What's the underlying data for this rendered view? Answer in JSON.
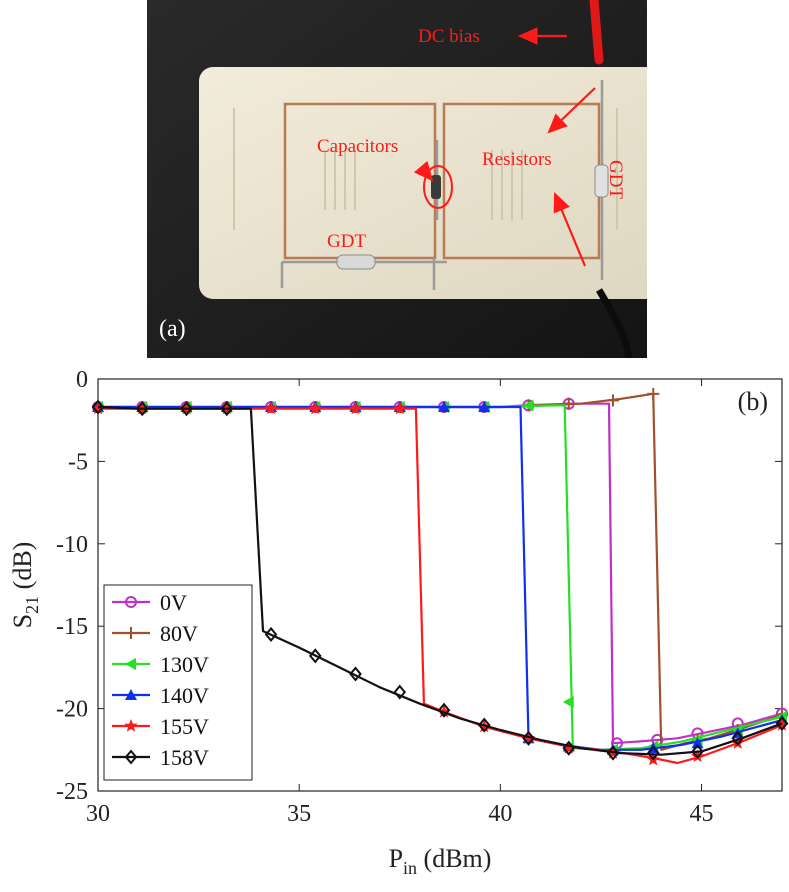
{
  "photo": {
    "panel_label": "(a)",
    "annotations": {
      "dc_bias": "DC bias",
      "capacitors": "Capacitors",
      "resistors": "Resistors",
      "gdt_right": "GDT",
      "gdt_left": "GDT"
    },
    "colors": {
      "annotation": "#ff1a1a",
      "board": "#ece6d2",
      "background": "#1e1e1e"
    }
  },
  "chart_data": {
    "type": "line",
    "panel_label": "(b)",
    "xlabel_main": "P",
    "xlabel_sub": "in",
    "xlabel_unit": " (dBm)",
    "ylabel_main": "S",
    "ylabel_sub": "21",
    "ylabel_unit": " (dB)",
    "xlim": [
      30,
      47
    ],
    "ylim": [
      -25,
      0
    ],
    "xticks": [
      30,
      35,
      40,
      45
    ],
    "yticks": [
      0,
      -5,
      -10,
      -15,
      -20,
      -25
    ],
    "legend_position": "lower-left",
    "series": [
      {
        "name": "0V",
        "color": "#c030c8",
        "marker": "circle",
        "x": [
          30,
          31,
          32,
          33,
          34,
          35,
          36,
          37,
          38,
          39,
          40,
          40.6,
          41.7,
          42.7,
          42.8,
          43.4,
          44.4,
          45,
          46,
          47
        ],
        "y": [
          -1.7,
          -1.7,
          -1.7,
          -1.7,
          -1.7,
          -1.7,
          -1.7,
          -1.7,
          -1.7,
          -1.7,
          -1.7,
          -1.6,
          -1.5,
          -1.5,
          -22.1,
          -22.0,
          -21.8,
          -21.5,
          -21.0,
          -20.3
        ],
        "marker_x": [
          30,
          31.1,
          32.2,
          33.2,
          34.3,
          35.4,
          36.4,
          37.5,
          38.6,
          39.6,
          40.7,
          41.7,
          42.9,
          43.9,
          44.9,
          45.9,
          47
        ],
        "marker_y": [
          -1.7,
          -1.7,
          -1.7,
          -1.7,
          -1.7,
          -1.7,
          -1.7,
          -1.7,
          -1.7,
          -1.7,
          -1.6,
          -1.5,
          -22.1,
          -21.9,
          -21.5,
          -20.9,
          -20.3
        ]
      },
      {
        "name": "80V",
        "color": "#a0502a",
        "marker": "plus",
        "x": [
          30,
          32,
          34,
          36,
          38,
          40,
          41,
          42,
          43,
          43.8,
          44.0,
          44.6,
          45.2,
          46,
          47
        ],
        "y": [
          -1.7,
          -1.7,
          -1.7,
          -1.7,
          -1.7,
          -1.7,
          -1.6,
          -1.5,
          -1.2,
          -0.9,
          -22.5,
          -22.1,
          -21.8,
          -21.2,
          -20.4
        ],
        "marker_x": [
          30,
          31.1,
          32.2,
          33.2,
          34.3,
          35.4,
          36.4,
          37.5,
          38.6,
          39.6,
          40.7,
          41.7,
          42.8,
          43.8,
          44.9,
          45.9,
          47
        ],
        "marker_y": [
          -1.7,
          -1.7,
          -1.7,
          -1.7,
          -1.7,
          -1.7,
          -1.7,
          -1.7,
          -1.7,
          -1.7,
          -1.6,
          -1.5,
          -1.3,
          -0.9,
          -21.9,
          -21.3,
          -20.4
        ]
      },
      {
        "name": "130V",
        "color": "#22e022",
        "marker": "triangle-left",
        "x": [
          30,
          32,
          34,
          36,
          38,
          40,
          41.3,
          41.6,
          41.8,
          42.5,
          43.5,
          44.5,
          45.5,
          47
        ],
        "y": [
          -1.7,
          -1.7,
          -1.7,
          -1.7,
          -1.7,
          -1.7,
          -1.6,
          -1.6,
          -22.4,
          -22.5,
          -22.4,
          -22.0,
          -21.4,
          -20.5
        ],
        "marker_x": [
          30,
          31.1,
          32.2,
          33.2,
          34.3,
          35.4,
          36.4,
          37.5,
          38.6,
          39.6,
          40.7,
          41.7,
          42.8,
          43.8,
          44.9,
          45.9,
          47
        ],
        "marker_y": [
          -1.7,
          -1.7,
          -1.7,
          -1.7,
          -1.7,
          -1.7,
          -1.7,
          -1.7,
          -1.7,
          -1.7,
          -1.6,
          -19.6,
          -22.5,
          -22.3,
          -21.9,
          -21.3,
          -20.5
        ]
      },
      {
        "name": "140V",
        "color": "#1030f0",
        "marker": "triangle-up",
        "x": [
          30,
          32,
          34,
          36,
          38,
          40,
          40.5,
          40.7,
          41.5,
          42.5,
          43.5,
          44.5,
          45.5,
          47
        ],
        "y": [
          -1.7,
          -1.7,
          -1.7,
          -1.7,
          -1.7,
          -1.7,
          -1.7,
          -21.8,
          -22.2,
          -22.5,
          -22.5,
          -22.2,
          -21.7,
          -20.7
        ],
        "marker_x": [
          30,
          31.1,
          32.2,
          33.2,
          34.3,
          35.4,
          36.4,
          37.5,
          38.6,
          39.6,
          40.7,
          41.7,
          42.8,
          43.8,
          44.9,
          45.9,
          47
        ],
        "marker_y": [
          -1.7,
          -1.7,
          -1.7,
          -1.7,
          -1.7,
          -1.7,
          -1.7,
          -1.7,
          -1.7,
          -1.7,
          -21.8,
          -22.3,
          -22.5,
          -22.4,
          -22.1,
          -21.5,
          -20.7
        ]
      },
      {
        "name": "155V",
        "color": "#ff1a1a",
        "marker": "star",
        "x": [
          30,
          32,
          34,
          36,
          37.9,
          38.1,
          38.6,
          39.6,
          40.7,
          41.7,
          42.8,
          43.8,
          44.4,
          45,
          46,
          47
        ],
        "y": [
          -1.8,
          -1.8,
          -1.8,
          -1.8,
          -1.8,
          -19.7,
          -20.2,
          -21.1,
          -21.8,
          -22.3,
          -22.6,
          -23.0,
          -23.3,
          -22.9,
          -22.0,
          -21.0
        ],
        "marker_x": [
          30,
          31.1,
          32.2,
          33.2,
          34.3,
          35.4,
          36.4,
          37.5,
          38.6,
          39.6,
          40.7,
          41.7,
          42.8,
          43.8,
          44.9,
          45.9,
          47
        ],
        "marker_y": [
          -1.8,
          -1.8,
          -1.8,
          -1.8,
          -1.8,
          -1.8,
          -1.8,
          -1.8,
          -20.2,
          -21.1,
          -21.8,
          -22.4,
          -22.7,
          -23.1,
          -22.9,
          -22.1,
          -21.0
        ]
      },
      {
        "name": "158V",
        "color": "#111111",
        "marker": "diamond",
        "x": [
          30,
          31,
          32,
          33.3,
          33.8,
          34.1,
          35,
          36,
          37,
          38,
          39,
          40,
          41,
          42,
          43,
          44,
          45,
          46,
          47
        ],
        "y": [
          -1.7,
          -1.8,
          -1.8,
          -1.8,
          -1.8,
          -15.3,
          -16.3,
          -17.5,
          -18.7,
          -19.7,
          -20.6,
          -21.3,
          -21.9,
          -22.4,
          -22.7,
          -22.8,
          -22.6,
          -21.8,
          -20.9
        ],
        "marker_x": [
          30,
          31.1,
          32.2,
          33.2,
          34.3,
          35.4,
          36.4,
          37.5,
          38.6,
          39.6,
          40.7,
          41.7,
          42.8,
          43.8,
          44.9,
          45.9,
          47
        ],
        "marker_y": [
          -1.7,
          -1.8,
          -1.8,
          -1.8,
          -15.5,
          -16.8,
          -17.9,
          -19.0,
          -20.1,
          -21.0,
          -21.8,
          -22.4,
          -22.7,
          -22.7,
          -22.6,
          -21.8,
          -20.9
        ]
      }
    ]
  }
}
